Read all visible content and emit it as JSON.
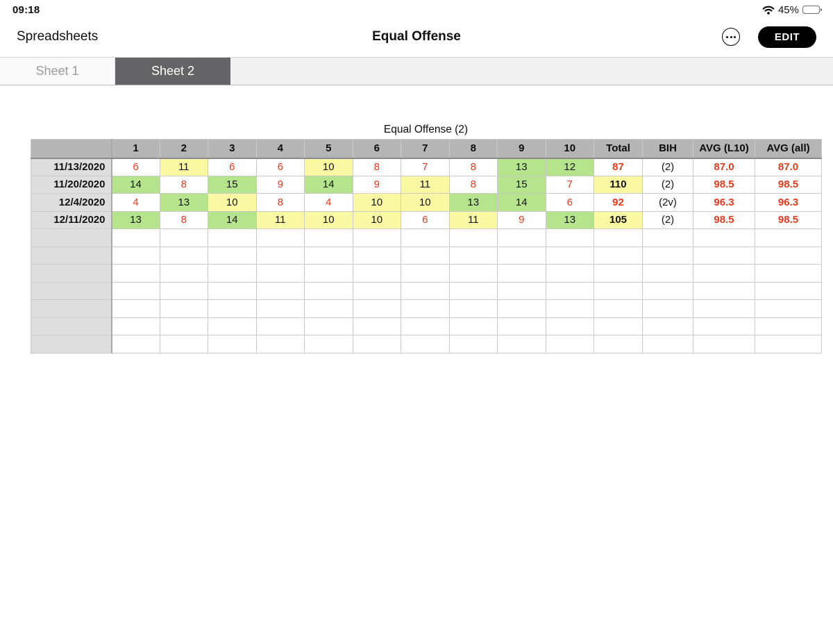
{
  "status_bar": {
    "time": "09:18",
    "battery_pct": "45%",
    "battery_level": 45,
    "wifi_icon": "wifi-icon",
    "battery_icon": "battery-icon"
  },
  "nav_bar": {
    "back_label": "Spreadsheets",
    "title": "Equal Offense",
    "more_icon": "ellipsis-circle-icon",
    "edit_label": "EDIT"
  },
  "tabs": [
    {
      "label": "Sheet 1",
      "active": false
    },
    {
      "label": "Sheet 2",
      "active": true
    }
  ],
  "sheet": {
    "table_title": "Equal Offense (2)",
    "columns": [
      "",
      "1",
      "2",
      "3",
      "4",
      "5",
      "6",
      "7",
      "8",
      "9",
      "10",
      "Total",
      "BIH",
      "AVG (L10)",
      "AVG (all)"
    ],
    "rows": [
      {
        "date": "11/13/2020",
        "cells": [
          [
            "6",
            "w",
            "r"
          ],
          [
            "11",
            "y",
            "k"
          ],
          [
            "6",
            "w",
            "r"
          ],
          [
            "6",
            "w",
            "r"
          ],
          [
            "10",
            "y",
            "k"
          ],
          [
            "8",
            "w",
            "r"
          ],
          [
            "7",
            "w",
            "r"
          ],
          [
            "8",
            "w",
            "r"
          ],
          [
            "13",
            "g",
            "k"
          ],
          [
            "12",
            "g",
            "k"
          ]
        ],
        "total": [
          "87",
          "w",
          "r"
        ],
        "bih": "(2)",
        "avg_l10": "87.0",
        "avg_all": "87.0"
      },
      {
        "date": "11/20/2020",
        "cells": [
          [
            "14",
            "g",
            "k"
          ],
          [
            "8",
            "w",
            "r"
          ],
          [
            "15",
            "g",
            "k"
          ],
          [
            "9",
            "w",
            "r"
          ],
          [
            "14",
            "g",
            "k"
          ],
          [
            "9",
            "w",
            "r"
          ],
          [
            "11",
            "y",
            "k"
          ],
          [
            "8",
            "w",
            "r"
          ],
          [
            "15",
            "g",
            "k"
          ],
          [
            "7",
            "w",
            "r"
          ]
        ],
        "total": [
          "110",
          "y",
          "k"
        ],
        "bih": "(2)",
        "avg_l10": "98.5",
        "avg_all": "98.5"
      },
      {
        "date": "12/4/2020",
        "cells": [
          [
            "4",
            "w",
            "r"
          ],
          [
            "13",
            "g",
            "k"
          ],
          [
            "10",
            "y",
            "k"
          ],
          [
            "8",
            "w",
            "r"
          ],
          [
            "4",
            "w",
            "r"
          ],
          [
            "10",
            "y",
            "k"
          ],
          [
            "10",
            "y",
            "k"
          ],
          [
            "13",
            "g",
            "k"
          ],
          [
            "14",
            "g",
            "k"
          ],
          [
            "6",
            "w",
            "r"
          ]
        ],
        "total": [
          "92",
          "w",
          "r"
        ],
        "bih": "(2v)",
        "avg_l10": "96.3",
        "avg_all": "96.3"
      },
      {
        "date": "12/11/2020",
        "cells": [
          [
            "13",
            "g",
            "k"
          ],
          [
            "8",
            "w",
            "r"
          ],
          [
            "14",
            "g",
            "k"
          ],
          [
            "11",
            "y",
            "k"
          ],
          [
            "10",
            "y",
            "k"
          ],
          [
            "10",
            "y",
            "k"
          ],
          [
            "6",
            "w",
            "r"
          ],
          [
            "11",
            "y",
            "k"
          ],
          [
            "9",
            "w",
            "r"
          ],
          [
            "13",
            "g",
            "k"
          ]
        ],
        "total": [
          "105",
          "y",
          "k"
        ],
        "bih": "(2)",
        "avg_l10": "98.5",
        "avg_all": "98.5"
      }
    ],
    "empty_row_count": 7,
    "colors": {
      "green": "#b5e48d",
      "yellow": "#fbf8a3",
      "red": "#e9391a",
      "black": "#141414",
      "white": "#ffffff",
      "header_bg": "#b5b5b5",
      "label_bg": "#dedede"
    }
  }
}
